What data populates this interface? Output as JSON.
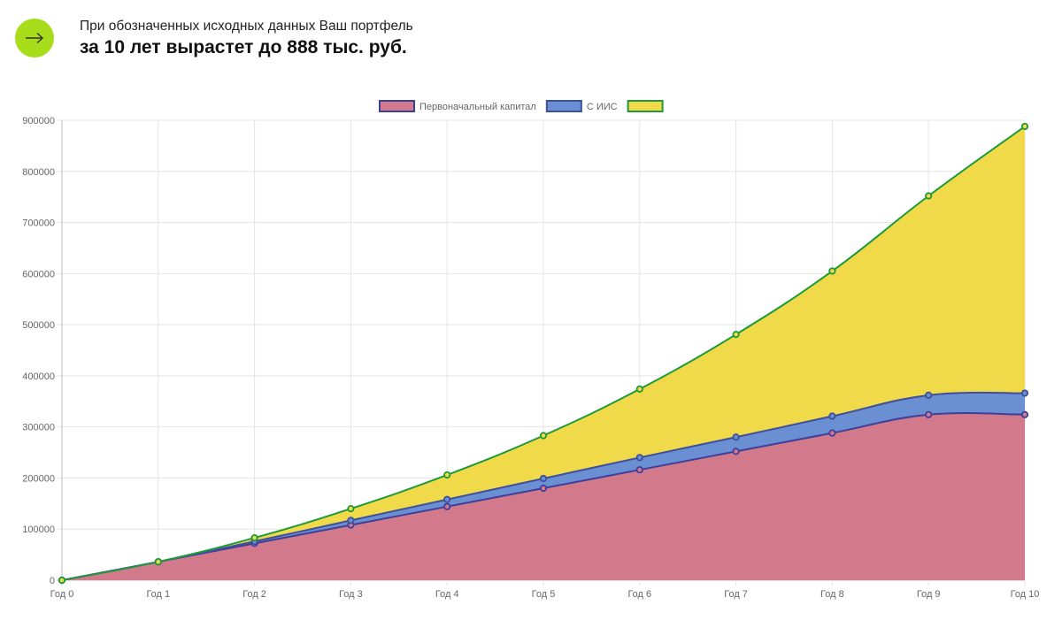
{
  "header": {
    "icon": "arrow-right-icon",
    "subtitle": "При обозначенных исходных данных Ваш портфель",
    "headline": "за 10 лет вырастет до 888 тыс. руб."
  },
  "colors": {
    "accent": "#a7dd1a",
    "capital_fill": "#d27a8c",
    "capital_line": "#3e3f99",
    "iis_fill": "#6a8fd2",
    "iis_line": "#3e4f9c",
    "total_fill": "#f0da4a",
    "total_line": "#1e9a3a"
  },
  "chart_data": {
    "type": "area",
    "stacked": false,
    "categories": [
      "Год 0",
      "Год 1",
      "Год 2",
      "Год 3",
      "Год 4",
      "Год 5",
      "Год 6",
      "Год 7",
      "Год 8",
      "Год 9",
      "Год 10"
    ],
    "series": [
      {
        "name": "Первоначальный капитал",
        "values": [
          0,
          36000,
          72000,
          108000,
          144000,
          180000,
          216000,
          252000,
          288000,
          324000,
          324000
        ]
      },
      {
        "name": "С ИИС",
        "values": [
          0,
          36000,
          76000,
          117000,
          158000,
          199000,
          240000,
          280000,
          321000,
          362000,
          366000
        ]
      },
      {
        "name": "",
        "values": [
          0,
          36000,
          83000,
          140000,
          206000,
          283000,
          374000,
          481000,
          605000,
          752000,
          888000
        ]
      }
    ],
    "ylim": [
      0,
      900000
    ],
    "yticks": [
      "0",
      "100000",
      "200000",
      "300000",
      "400000",
      "500000",
      "600000",
      "700000",
      "800000",
      "900000"
    ],
    "grid": true,
    "legend": "top-center",
    "title": "",
    "xlabel": "",
    "ylabel": ""
  }
}
